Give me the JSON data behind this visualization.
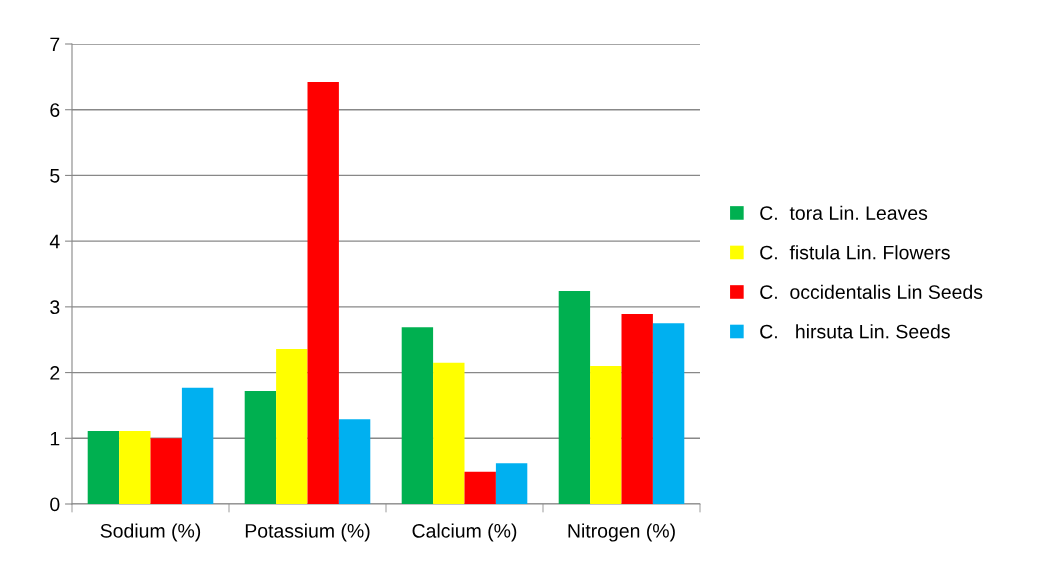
{
  "chart_data": {
    "type": "bar",
    "categories": [
      "Sodium (%)",
      "Potassium (%)",
      "Calcium (%)",
      "Nitrogen (%)"
    ],
    "series": [
      {
        "name": "C.  tora Lin. Leaves",
        "color": "#00b050",
        "values": [
          1.11,
          1.72,
          2.69,
          3.24
        ]
      },
      {
        "name": "C.  fistula Lin. Flowers",
        "color": "#ffff00",
        "values": [
          1.11,
          2.36,
          2.15,
          2.1
        ]
      },
      {
        "name": "C.  occidentalis Lin Seeds",
        "color": "#ff0000",
        "values": [
          1.0,
          6.42,
          0.49,
          2.89
        ]
      },
      {
        "name": "C.   hirsuta Lin. Seeds",
        "color": "#00b0f0",
        "values": [
          1.77,
          1.29,
          0.62,
          2.75
        ]
      }
    ],
    "ylim": [
      0,
      7
    ],
    "yticks": [
      0,
      1,
      2,
      3,
      4,
      5,
      6,
      7
    ],
    "grid": "y",
    "legend": "right"
  }
}
